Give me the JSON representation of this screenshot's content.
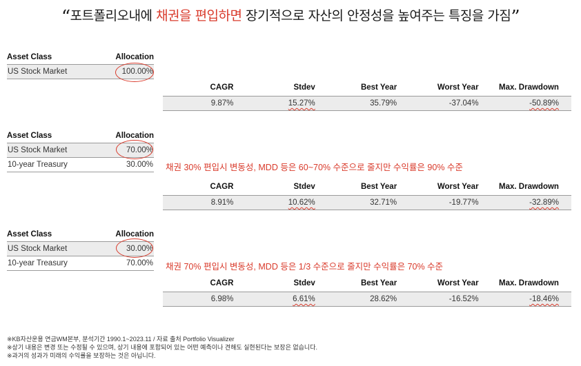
{
  "title": {
    "open_quote": "“",
    "part1": "포트폴리오내에 ",
    "highlight1": "채권을",
    "part2": " ",
    "highlight2": "편입하면",
    "part3": " 장기적으로 자산의 안정성을 높여주는 특징을 가짐",
    "close_quote": "”"
  },
  "portfolios": [
    {
      "alloc_headers": [
        "Asset Class",
        "Allocation"
      ],
      "rows": [
        {
          "asset": "US Stock Market",
          "allocation": "100.00%"
        }
      ],
      "stats_headers": [
        "CAGR",
        "Stdev",
        "Best Year",
        "Worst Year",
        "Max. Drawdown"
      ],
      "stats_values": [
        "9.87%",
        "15.27%",
        "35.79%",
        "-37.04%",
        "-50.89%"
      ],
      "note": ""
    },
    {
      "alloc_headers": [
        "Asset Class",
        "Allocation"
      ],
      "rows": [
        {
          "asset": "US Stock Market",
          "allocation": "70.00%"
        },
        {
          "asset": "10-year Treasury",
          "allocation": "30.00%"
        }
      ],
      "stats_headers": [
        "CAGR",
        "Stdev",
        "Best Year",
        "Worst Year",
        "Max. Drawdown"
      ],
      "stats_values": [
        "8.91%",
        "10.62%",
        "32.71%",
        "-19.77%",
        "-32.89%"
      ],
      "note": "채권 30% 편입시 변동성, MDD 등은 60~70% 수준으로 줄지만 수익률은 90% 수준"
    },
    {
      "alloc_headers": [
        "Asset Class",
        "Allocation"
      ],
      "rows": [
        {
          "asset": "US Stock Market",
          "allocation": "30.00%"
        },
        {
          "asset": "10-year Treasury",
          "allocation": "70.00%"
        }
      ],
      "stats_headers": [
        "CAGR",
        "Stdev",
        "Best Year",
        "Worst Year",
        "Max. Drawdown"
      ],
      "stats_values": [
        "6.98%",
        "6.61%",
        "28.62%",
        "-16.52%",
        "-18.46%"
      ],
      "note": "채권 70% 편입시 변동성, MDD 등은 1/3 수준으로 줄지만 수익률은 70% 수준"
    }
  ],
  "footnotes": [
    "※KB자산운용 연금WM본부, 분석기간 1990.1~2023.11 / 자료 출처 Portfolio Visualizer",
    "※상기 내용은 변경 또는 수정될 수 있으며, 상기 내용에 포함되어 있는 어떤 예측이나 견해도 실현된다는 보장은 없습니다.",
    "※과거의 성과가 미래의 수익률을 보장하는 것은 아닙니다."
  ],
  "colors": {
    "accent": "#d93a2b",
    "row_shade": "#ececec",
    "rule": "#9a9a9a"
  }
}
